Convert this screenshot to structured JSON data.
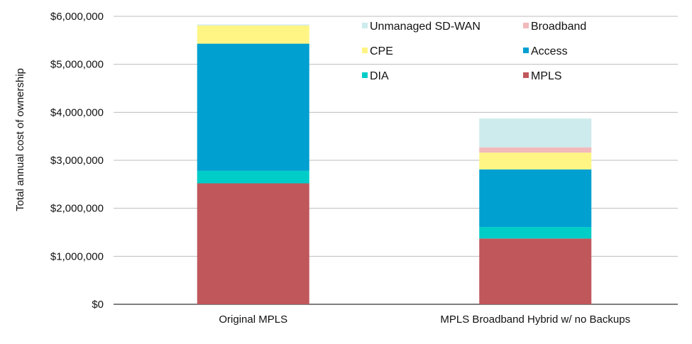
{
  "chart_data": {
    "type": "bar",
    "stacked": true,
    "categories": [
      "Original MPLS",
      "MPLS Broadband Hybrid w/ no Backups"
    ],
    "series": [
      {
        "name": "MPLS",
        "color": "#C0575B",
        "values": [
          2520000,
          1370000
        ]
      },
      {
        "name": "DIA",
        "color": "#00CDC8",
        "values": [
          260000,
          240000
        ]
      },
      {
        "name": "Access",
        "color": "#00A0D0",
        "values": [
          2650000,
          1200000
        ]
      },
      {
        "name": "CPE",
        "color": "#FFF585",
        "values": [
          380000,
          350000
        ]
      },
      {
        "name": "Broadband",
        "color": "#F2B9BB",
        "values": [
          0,
          110000
        ]
      },
      {
        "name": "Unmanaged SD-WAN",
        "color": "#CDEBEC",
        "values": [
          20000,
          600000
        ]
      }
    ],
    "ylabel": "Total annual cost of ownership",
    "xlabel": "",
    "ylim": [
      0,
      6000000
    ],
    "yticks": [
      0,
      1000000,
      2000000,
      3000000,
      4000000,
      5000000,
      6000000
    ],
    "ytick_labels": [
      "$0",
      "$1,000,000",
      "$2,000,000",
      "$3,000,000",
      "$4,000,000",
      "$5,000,000",
      "$6,000,000"
    ],
    "grid": true,
    "legend": {
      "position": "top-right",
      "order": [
        "Unmanaged SD-WAN",
        "Broadband",
        "CPE",
        "Access",
        "DIA",
        "MPLS"
      ]
    }
  }
}
